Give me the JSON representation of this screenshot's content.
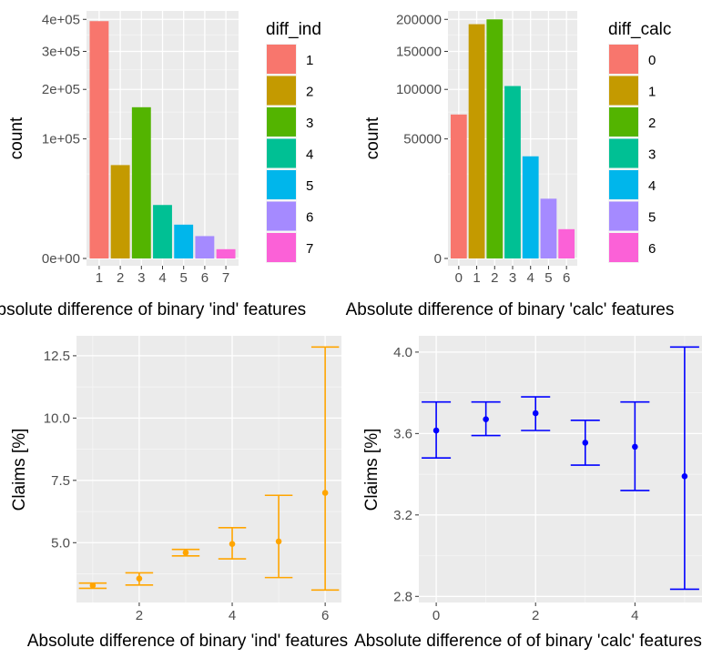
{
  "chart_data": [
    {
      "type": "bar",
      "title": "",
      "xlabel": "Absolute difference of binary 'ind' features",
      "ylabel": "count",
      "categories": [
        "1",
        "2",
        "3",
        "4",
        "5",
        "6",
        "7"
      ],
      "values": [
        394000,
        61000,
        160000,
        20000,
        8000,
        3500,
        600
      ],
      "colors": [
        "#F8766D",
        "#C49A00",
        "#53B400",
        "#00C094",
        "#00B6EB",
        "#A58AFF",
        "#FB61D7"
      ],
      "y_scale": "sqrt",
      "ylim": [
        0,
        410000
      ],
      "yticks": [
        0,
        100000,
        200000,
        300000,
        400000
      ],
      "ytick_labels": [
        "0e+00",
        "1e+05",
        "2e+05",
        "3e+05",
        "4e+05"
      ],
      "legend": {
        "title": "diff_ind",
        "position": "right",
        "labels": [
          "1",
          "2",
          "3",
          "4",
          "5",
          "6",
          "7"
        ]
      },
      "grid": true
    },
    {
      "type": "bar",
      "title": "",
      "xlabel": "Absolute difference of binary 'calc' features",
      "ylabel": "count",
      "categories": [
        "0",
        "1",
        "2",
        "3",
        "4",
        "5",
        "6"
      ],
      "values": [
        72500,
        192000,
        200000,
        104000,
        36500,
        12500,
        3000
      ],
      "colors": [
        "#F8766D",
        "#C49A00",
        "#53B400",
        "#00C094",
        "#00B6EB",
        "#A58AFF",
        "#FB61D7"
      ],
      "y_scale": "sqrt",
      "ylim": [
        0,
        205000
      ],
      "yticks": [
        0,
        50000,
        100000,
        150000,
        200000
      ],
      "ytick_labels": [
        "0",
        "50000",
        "100000",
        "150000",
        "200000"
      ],
      "legend": {
        "title": "diff_calc",
        "position": "right",
        "labels": [
          "0",
          "1",
          "2",
          "3",
          "4",
          "5",
          "6"
        ]
      },
      "grid": true
    },
    {
      "type": "scatter",
      "title": "",
      "xlabel": "Absolute difference of binary 'ind' features",
      "ylabel": "Claims [%]",
      "color": "#FFA500",
      "points": [
        {
          "x": 1,
          "y": 3.28,
          "lower": 3.17,
          "upper": 3.38
        },
        {
          "x": 2,
          "y": 3.56,
          "lower": 3.3,
          "upper": 3.79
        },
        {
          "x": 3,
          "y": 4.6,
          "lower": 4.47,
          "upper": 4.73
        },
        {
          "x": 4,
          "y": 4.95,
          "lower": 4.35,
          "upper": 5.6
        },
        {
          "x": 5,
          "y": 5.05,
          "lower": 3.6,
          "upper": 6.9
        },
        {
          "x": 6,
          "y": 7.0,
          "lower": 3.1,
          "upper": 12.85
        }
      ],
      "xlim": [
        0.65,
        6.35
      ],
      "ylim": [
        2.6,
        13.3
      ],
      "xticks": [
        2,
        4,
        6
      ],
      "xtick_labels": [
        "2",
        "4",
        "6"
      ],
      "yticks": [
        5.0,
        7.5,
        10.0,
        12.5
      ],
      "ytick_labels": [
        "5.0",
        "7.5",
        "10.0",
        "12.5"
      ],
      "grid": true
    },
    {
      "type": "scatter",
      "title": "",
      "xlabel": "Absolute difference of of binary 'calc' features",
      "ylabel": "Claims [%]",
      "color": "#0000FF",
      "points": [
        {
          "x": 0,
          "y": 3.615,
          "lower": 3.48,
          "upper": 3.755
        },
        {
          "x": 1,
          "y": 3.67,
          "lower": 3.59,
          "upper": 3.755
        },
        {
          "x": 2,
          "y": 3.7,
          "lower": 3.615,
          "upper": 3.78
        },
        {
          "x": 3,
          "y": 3.555,
          "lower": 3.445,
          "upper": 3.665
        },
        {
          "x": 4,
          "y": 3.535,
          "lower": 3.32,
          "upper": 3.755
        },
        {
          "x": 5,
          "y": 3.39,
          "lower": 2.835,
          "upper": 4.025
        }
      ],
      "xlim": [
        -0.35,
        5.35
      ],
      "ylim": [
        2.77,
        4.08
      ],
      "xticks": [
        0,
        2,
        4
      ],
      "xtick_labels": [
        "0",
        "2",
        "4"
      ],
      "yticks": [
        2.8,
        3.2,
        3.6,
        4.0
      ],
      "ytick_labels": [
        "2.8",
        "3.2",
        "3.6",
        "4.0"
      ],
      "grid": true
    }
  ]
}
